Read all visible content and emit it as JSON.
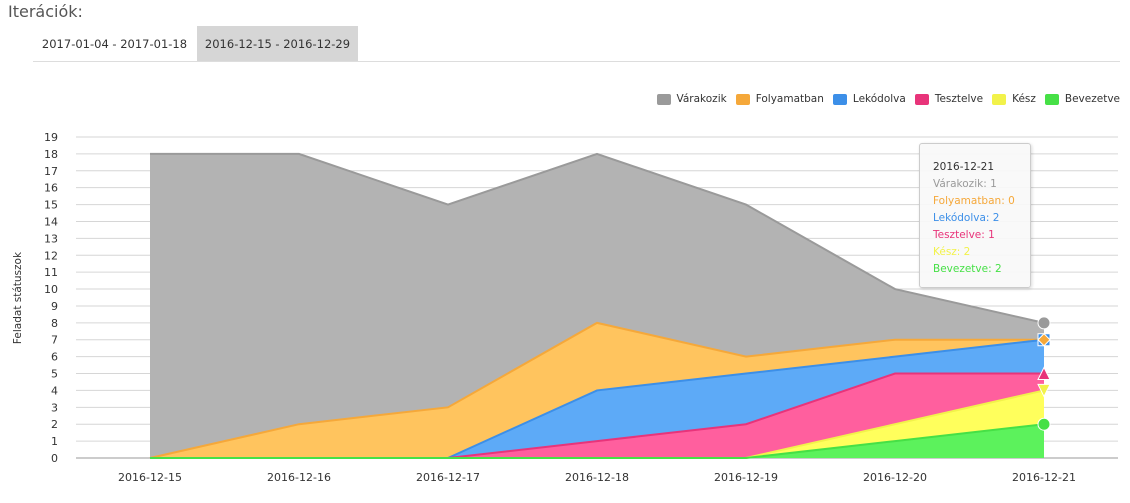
{
  "section_title": "Iterációk:",
  "tabs": [
    {
      "label": "2017-01-04 - 2017-01-18",
      "active": false
    },
    {
      "label": "2016-12-15 - 2016-12-29",
      "active": true
    }
  ],
  "tooltip": {
    "date": "2016-12-21",
    "lines": [
      {
        "text": "Várakozik: 1",
        "color": "#9a9a9a"
      },
      {
        "text": "Folyamatban: 0",
        "color": "#f5a83a"
      },
      {
        "text": "Lekódolva: 2",
        "color": "#3c8fe8"
      },
      {
        "text": "Tesztelve: 1",
        "color": "#e8347a"
      },
      {
        "text": "Kész: 2",
        "color": "#f2f24a"
      },
      {
        "text": "Bevezetve: 2",
        "color": "#46e046"
      }
    ]
  },
  "chart_data": {
    "type": "area",
    "stacked": true,
    "ylabel": "Feladat státuszok",
    "xlabel": "",
    "ylim": [
      0,
      19
    ],
    "grid": true,
    "legend_position": "top-right",
    "categories": [
      "2016-12-15",
      "2016-12-16",
      "2016-12-17",
      "2016-12-18",
      "2016-12-19",
      "2016-12-20",
      "2016-12-21"
    ],
    "yticks": [
      0,
      1,
      2,
      3,
      4,
      5,
      6,
      7,
      8,
      9,
      10,
      11,
      12,
      13,
      14,
      15,
      16,
      17,
      18,
      19
    ],
    "series": [
      {
        "name": "Várakozik",
        "color": "#9a9a9a",
        "fill": "#b3b3b3",
        "marker": "circle",
        "values": [
          18,
          16,
          12,
          10,
          9,
          3,
          1
        ]
      },
      {
        "name": "Folyamatban",
        "color": "#f5a83a",
        "fill": "#ffc45e",
        "marker": "diamond",
        "values": [
          0,
          2,
          3,
          4,
          1,
          1,
          0
        ]
      },
      {
        "name": "Lekódolva",
        "color": "#3c8fe8",
        "fill": "#5daaf7",
        "marker": "square",
        "values": [
          0,
          0,
          0,
          3,
          3,
          1,
          2
        ]
      },
      {
        "name": "Tesztelve",
        "color": "#e8347a",
        "fill": "#ff5f9e",
        "marker": "triangle",
        "values": [
          0,
          0,
          0,
          1,
          2,
          3,
          1
        ]
      },
      {
        "name": "Kész",
        "color": "#f2f24a",
        "fill": "#ffff5c",
        "marker": "triangle-down",
        "values": [
          0,
          0,
          0,
          0,
          0,
          1,
          2
        ]
      },
      {
        "name": "Bevezetve",
        "color": "#46e046",
        "fill": "#5cf25c",
        "marker": "circle",
        "values": [
          0,
          0,
          0,
          0,
          0,
          1,
          2
        ]
      }
    ]
  }
}
